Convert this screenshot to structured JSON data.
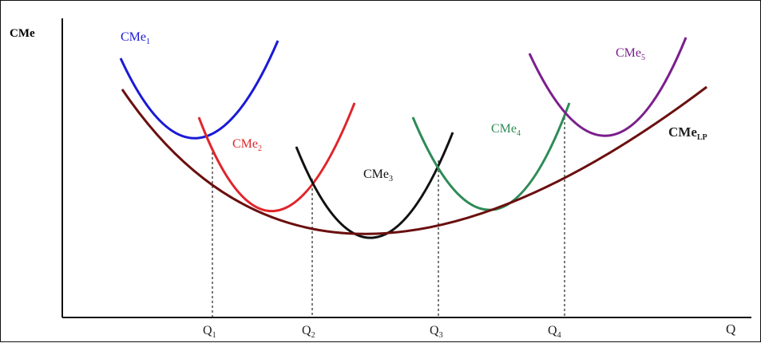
{
  "axes": {
    "y_label": "CMe",
    "x_label": "Q",
    "q_ticks": [
      {
        "base": "Q",
        "sub": "1"
      },
      {
        "base": "Q",
        "sub": "2"
      },
      {
        "base": "Q",
        "sub": "3"
      },
      {
        "base": "Q",
        "sub": "4"
      }
    ]
  },
  "curves": {
    "short_run": [
      {
        "base": "CMe",
        "sub": "1",
        "color": "#1a1ad6"
      },
      {
        "base": "CMe",
        "sub": "2",
        "color": "#e0252a"
      },
      {
        "base": "CMe",
        "sub": "3",
        "color": "#111111"
      },
      {
        "base": "CMe",
        "sub": "4",
        "color": "#2e8b57"
      },
      {
        "base": "CMe",
        "sub": "5",
        "color": "#7b1f8c"
      }
    ],
    "long_run": {
      "base": "CMe",
      "sub": "LP",
      "color": "#6b0f0f"
    }
  }
}
